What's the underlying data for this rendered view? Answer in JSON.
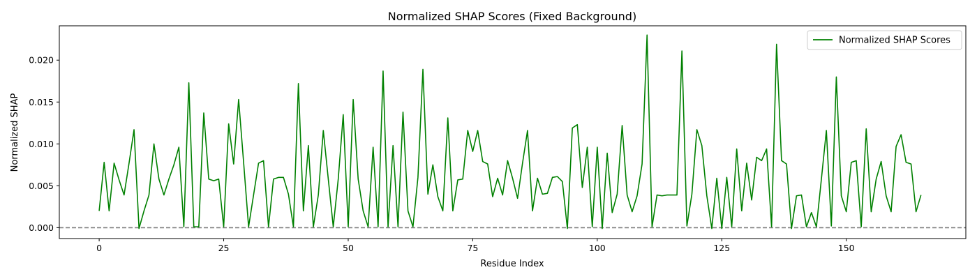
{
  "chart_data": {
    "type": "line",
    "title": "Normalized SHAP Scores (Fixed Background)",
    "xlabel": "Residue Index",
    "ylabel": "Normalized SHAP",
    "xlim": [
      -8,
      174
    ],
    "ylim": [
      -0.0013,
      0.0241
    ],
    "xticks": [
      0,
      25,
      50,
      75,
      100,
      125,
      150
    ],
    "yticks": [
      0.0,
      0.005,
      0.01,
      0.015,
      0.02
    ],
    "ytick_labels": [
      "0.000",
      "0.005",
      "0.010",
      "0.015",
      "0.020"
    ],
    "reference_line": {
      "y": 0.0,
      "style": "dashed",
      "color": "#808080"
    },
    "legend": {
      "position": "top-right",
      "entries": [
        "Normalized SHAP Scores"
      ]
    },
    "grid": false,
    "series": [
      {
        "name": "Normalized SHAP Scores",
        "color": "#008000",
        "x": [
          0,
          1,
          2,
          3,
          4,
          5,
          6,
          7,
          8,
          9,
          10,
          11,
          12,
          13,
          14,
          15,
          16,
          17,
          18,
          19,
          20,
          21,
          22,
          23,
          24,
          25,
          26,
          27,
          28,
          29,
          30,
          31,
          32,
          33,
          34,
          35,
          36,
          37,
          38,
          39,
          40,
          41,
          42,
          43,
          44,
          45,
          46,
          47,
          48,
          49,
          50,
          51,
          52,
          53,
          54,
          55,
          56,
          57,
          58,
          59,
          60,
          61,
          62,
          63,
          64,
          65,
          66,
          67,
          68,
          69,
          70,
          71,
          72,
          73,
          74,
          75,
          76,
          77,
          78,
          79,
          80,
          81,
          82,
          83,
          84,
          85,
          86,
          87,
          88,
          89,
          90,
          91,
          92,
          93,
          94,
          95,
          96,
          97,
          98,
          99,
          100,
          101,
          102,
          103,
          104,
          105,
          106,
          107,
          108,
          109,
          110,
          111,
          112,
          113,
          114,
          115,
          116,
          117,
          118,
          119,
          120,
          121,
          122,
          123,
          124,
          125,
          126,
          127,
          128,
          129,
          130,
          131,
          132,
          133,
          134,
          135,
          136,
          137,
          138,
          139,
          140,
          141,
          142,
          143,
          144,
          145,
          146,
          147,
          148,
          149,
          150,
          151,
          152,
          153,
          154,
          155,
          156,
          157,
          158,
          159,
          160,
          161,
          162,
          163,
          164,
          165
        ],
        "y": [
          0.002,
          0.0078,
          0.002,
          0.0077,
          0.0057,
          0.0039,
          0.0077,
          0.0117,
          -0.0001,
          0.002,
          0.0039,
          0.01,
          0.0058,
          0.0039,
          0.0058,
          0.0075,
          0.0096,
          0.0001,
          0.0173,
          0.0001,
          0.0001,
          0.0137,
          0.0058,
          0.0056,
          0.0058,
          0.0001,
          0.0124,
          0.0076,
          0.0153,
          0.0078,
          0.0001,
          0.0039,
          0.0077,
          0.008,
          0.0001,
          0.0058,
          0.006,
          0.006,
          0.004,
          0.0001,
          0.0172,
          0.002,
          0.0098,
          0.0001,
          0.0039,
          0.0116,
          0.0058,
          0.0001,
          0.0058,
          0.0135,
          0.0001,
          0.0153,
          0.0058,
          0.002,
          0.0001,
          0.0096,
          0.0001,
          0.0187,
          0.0001,
          0.0098,
          0.0001,
          0.0138,
          0.002,
          0.0001,
          0.006,
          0.0189,
          0.004,
          0.0075,
          0.0037,
          0.002,
          0.0131,
          0.002,
          0.0057,
          0.0058,
          0.0116,
          0.0091,
          0.0116,
          0.0079,
          0.0076,
          0.0037,
          0.0059,
          0.0039,
          0.008,
          0.0059,
          0.0035,
          0.0077,
          0.0116,
          0.002,
          0.0059,
          0.004,
          0.0041,
          0.006,
          0.0061,
          0.0055,
          -0.0001,
          0.0119,
          0.0123,
          0.0048,
          0.0096,
          0.0001,
          0.0096,
          -0.0001,
          0.0089,
          0.0018,
          0.004,
          0.0122,
          0.0039,
          0.0019,
          0.0038,
          0.0076,
          0.023,
          0.0001,
          0.0039,
          0.0038,
          0.0039,
          0.0039,
          0.0039,
          0.0211,
          0.0002,
          0.004,
          0.0117,
          0.0098,
          0.0038,
          -0.0001,
          0.0059,
          -0.0001,
          0.006,
          0.0001,
          0.0094,
          0.002,
          0.0077,
          0.0033,
          0.0084,
          0.008,
          0.0094,
          0.0001,
          0.0219,
          0.008,
          0.0076,
          -0.0001,
          0.0038,
          0.0039,
          0.0001,
          0.0018,
          0.0001,
          0.0058,
          0.0116,
          0.0002,
          0.018,
          0.0038,
          0.0019,
          0.0078,
          0.008,
          0.0001,
          0.0118,
          0.0019,
          0.0058,
          0.0079,
          0.0038,
          0.0019,
          0.0097,
          0.0111,
          0.0078,
          0.0076,
          0.0019,
          0.0039
        ]
      }
    ]
  }
}
